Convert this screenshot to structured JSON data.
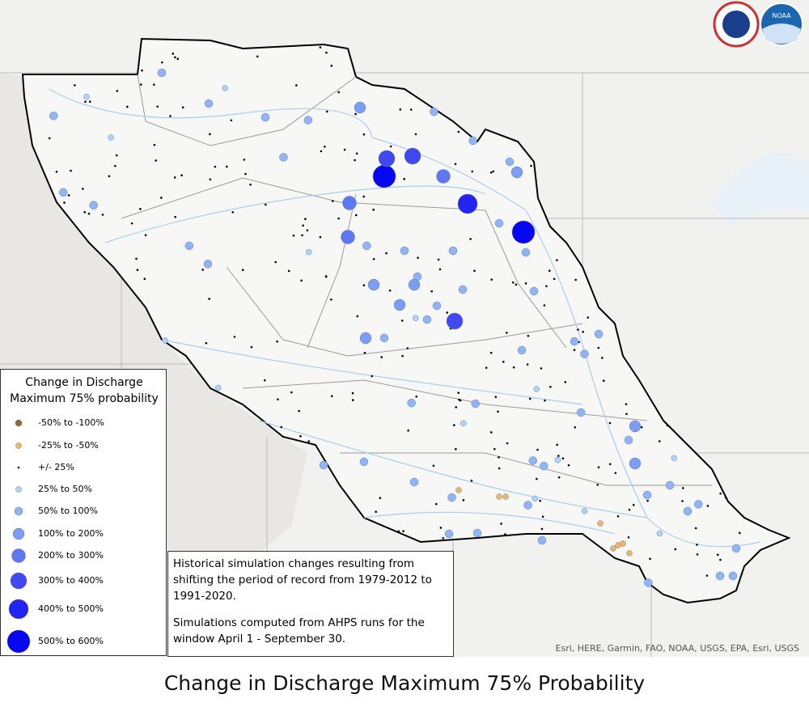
{
  "map": {
    "caption": "Change in Discharge Maximum 75% Probability",
    "legend": {
      "title": "Change in Discharge Maximum 75% probability",
      "items": [
        {
          "label": "-50% to -100%",
          "color": "#8a6d3b"
        },
        {
          "label": "-25% to -50%",
          "color": "#f0b462"
        },
        {
          "label": "+/- 25%",
          "color": "#000000"
        },
        {
          "label": "25% to 50%",
          "color": "#aed4f7"
        },
        {
          "label": "50% to 100%",
          "color": "#90b4f6"
        },
        {
          "label": "100% to 200%",
          "color": "#7c9cf6"
        },
        {
          "label": "200% to 300%",
          "color": "#5e78f4"
        },
        {
          "label": "300% to 400%",
          "color": "#4048f2"
        },
        {
          "label": "400% to 500%",
          "color": "#2424f0"
        },
        {
          "label": "500% to 600%",
          "color": "#0808f0"
        }
      ]
    },
    "note": {
      "paragraphs": [
        "Historical simulation changes resulting from shifting the period of record from 1979-2012 to 1991-2020.",
        "Simulations computed from AHPS runs for the window April 1 - September 30."
      ]
    },
    "attribution": "Esri, HERE, Garmin, FAO, NOAA, USGS, EPA, Esri, USGS",
    "logo": "NOAA"
  }
}
